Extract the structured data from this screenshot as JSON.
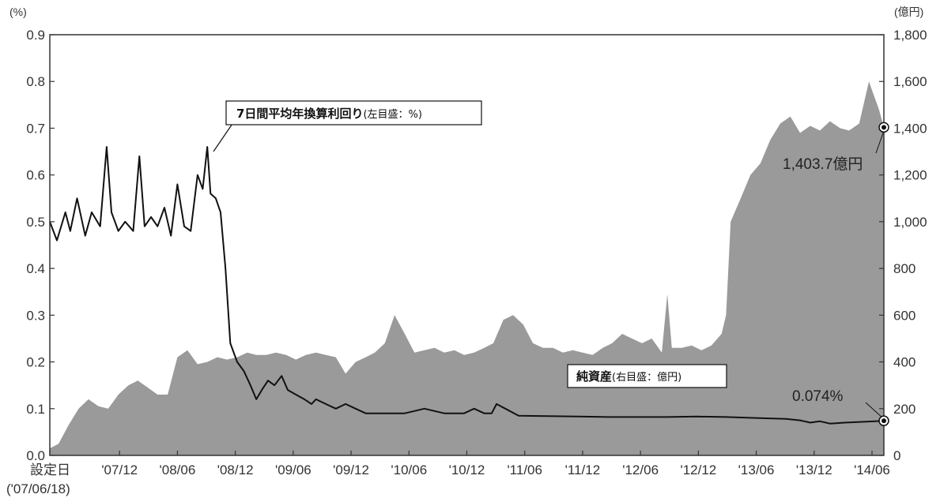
{
  "chart_data": {
    "type": "line",
    "left_axis": {
      "unit": "(%)",
      "ticks": [
        "0.0",
        "0.1",
        "0.2",
        "0.3",
        "0.4",
        "0.5",
        "0.6",
        "0.7",
        "0.8",
        "0.9"
      ],
      "ylim": [
        0,
        0.9
      ]
    },
    "right_axis": {
      "unit": "(億円)",
      "ticks": [
        "0",
        "200",
        "400",
        "600",
        "800",
        "1,000",
        "1,200",
        "1,400",
        "1,600",
        "1,800"
      ],
      "ylim": [
        0,
        1800
      ]
    },
    "x_ticks": [
      "設定日",
      "'07/12",
      "'08/06",
      "'08/12",
      "'09/06",
      "'09/12",
      "'10/06",
      "'10/12",
      "'11/06",
      "'11/12",
      "'12/06",
      "'12/12",
      "'13/06",
      "'13/12",
      "'14/06"
    ],
    "x_first_sub": "('07/06/18)",
    "series": [
      {
        "name": "純資産",
        "axis": "right",
        "color": "#9a9a9a",
        "x": [
          "2007-06-18",
          "2007-07-15",
          "2007-08-15",
          "2007-09-15",
          "2007-10-15",
          "2007-11-15",
          "2007-12-15",
          "2008-01-15",
          "2008-02-15",
          "2008-03-15",
          "2008-04-15",
          "2008-05-15",
          "2008-06-15",
          "2008-07-15",
          "2008-08-15",
          "2008-09-15",
          "2008-10-15",
          "2008-11-15",
          "2008-12-15",
          "2009-01-15",
          "2009-02-15",
          "2009-03-15",
          "2009-04-15",
          "2009-05-15",
          "2009-06-15",
          "2009-07-15",
          "2009-08-15",
          "2009-09-15",
          "2009-10-15",
          "2009-11-15",
          "2009-12-15",
          "2010-01-15",
          "2010-02-15",
          "2010-03-15",
          "2010-04-15",
          "2010-05-15",
          "2010-06-15",
          "2010-07-15",
          "2010-08-15",
          "2010-09-15",
          "2010-10-15",
          "2010-11-15",
          "2010-12-15",
          "2011-01-15",
          "2011-02-15",
          "2011-03-15",
          "2011-04-15",
          "2011-05-15",
          "2011-06-15",
          "2011-07-15",
          "2011-08-15",
          "2011-09-15",
          "2011-10-15",
          "2011-11-15",
          "2011-12-15",
          "2012-01-15",
          "2012-02-15",
          "2012-03-15",
          "2012-04-15",
          "2012-05-15",
          "2012-06-15",
          "2012-07-15",
          "2012-08-15",
          "2012-09-01",
          "2012-09-15",
          "2012-10-15",
          "2012-11-15",
          "2012-12-15",
          "2013-01-15",
          "2013-02-15",
          "2013-03-01",
          "2013-03-15",
          "2013-04-15",
          "2013-05-15",
          "2013-06-15",
          "2013-07-15",
          "2013-08-15",
          "2013-09-15",
          "2013-10-15",
          "2013-11-15",
          "2013-12-15",
          "2014-01-15",
          "2014-02-15",
          "2014-03-15",
          "2014-04-15",
          "2014-05-15",
          "2014-06-15",
          "2014-06-30"
        ],
        "values": [
          30,
          50,
          130,
          200,
          240,
          210,
          200,
          260,
          300,
          320,
          290,
          260,
          260,
          420,
          450,
          390,
          400,
          420,
          410,
          420,
          440,
          430,
          430,
          440,
          430,
          410,
          430,
          440,
          430,
          420,
          350,
          400,
          420,
          440,
          480,
          600,
          520,
          440,
          450,
          460,
          440,
          450,
          430,
          440,
          460,
          480,
          580,
          600,
          560,
          480,
          460,
          460,
          440,
          450,
          440,
          430,
          460,
          480,
          520,
          500,
          480,
          500,
          440,
          690,
          460,
          460,
          470,
          450,
          470,
          520,
          600,
          1000,
          1100,
          1200,
          1250,
          1350,
          1420,
          1450,
          1380,
          1410,
          1390,
          1430,
          1400,
          1390,
          1420,
          1600,
          1480,
          1403.7
        ]
      },
      {
        "name": "7日間平均年換算利回り",
        "axis": "left",
        "color": "#111111",
        "x": [
          "2007-06-18",
          "2007-07-10",
          "2007-08-05",
          "2007-08-20",
          "2007-09-10",
          "2007-10-05",
          "2007-10-25",
          "2007-11-20",
          "2007-12-10",
          "2007-12-25",
          "2008-01-15",
          "2008-02-05",
          "2008-03-01",
          "2008-03-20",
          "2008-04-05",
          "2008-04-25",
          "2008-05-15",
          "2008-06-05",
          "2008-06-25",
          "2008-07-15",
          "2008-08-05",
          "2008-08-25",
          "2008-09-15",
          "2008-10-01",
          "2008-10-15",
          "2008-10-25",
          "2008-11-10",
          "2008-11-25",
          "2008-12-10",
          "2008-12-25",
          "2009-01-15",
          "2009-02-05",
          "2009-02-25",
          "2009-03-15",
          "2009-04-01",
          "2009-04-20",
          "2009-05-10",
          "2009-06-01",
          "2009-06-20",
          "2009-07-15",
          "2009-08-10",
          "2009-09-01",
          "2009-09-15",
          "2009-10-15",
          "2009-11-15",
          "2009-12-15",
          "2010-01-15",
          "2010-02-15",
          "2010-04-01",
          "2010-06-15",
          "2010-08-15",
          "2010-10-15",
          "2010-12-15",
          "2011-01-15",
          "2011-02-15",
          "2011-03-10",
          "2011-03-25",
          "2011-06-01",
          "2011-09-01",
          "2011-12-01",
          "2012-03-01",
          "2012-06-01",
          "2012-09-01",
          "2012-12-01",
          "2013-03-01",
          "2013-06-01",
          "2013-09-01",
          "2013-10-15",
          "2013-11-15",
          "2013-12-15",
          "2014-01-15",
          "2014-03-01",
          "2014-05-01",
          "2014-06-30"
        ],
        "values": [
          0.5,
          0.46,
          0.52,
          0.48,
          0.55,
          0.47,
          0.52,
          0.49,
          0.66,
          0.52,
          0.48,
          0.5,
          0.48,
          0.64,
          0.49,
          0.51,
          0.49,
          0.53,
          0.47,
          0.58,
          0.49,
          0.48,
          0.6,
          0.57,
          0.66,
          0.56,
          0.55,
          0.52,
          0.4,
          0.24,
          0.2,
          0.18,
          0.15,
          0.12,
          0.14,
          0.16,
          0.15,
          0.17,
          0.14,
          0.13,
          0.12,
          0.11,
          0.12,
          0.11,
          0.1,
          0.11,
          0.1,
          0.09,
          0.09,
          0.09,
          0.1,
          0.09,
          0.09,
          0.1,
          0.09,
          0.09,
          0.11,
          0.085,
          0.084,
          0.083,
          0.082,
          0.082,
          0.082,
          0.083,
          0.082,
          0.08,
          0.078,
          0.075,
          0.07,
          0.073,
          0.068,
          0.07,
          0.072,
          0.074
        ]
      }
    ],
    "callouts": {
      "yield_label": "7日間平均年換算利回り",
      "yield_sub": "(左目盛：%)",
      "asset_label": "純資産",
      "asset_sub": "(右目盛：億円)",
      "asset_end_value": "1,403.7億円",
      "yield_end_value": "0.074%"
    },
    "grid": false
  }
}
